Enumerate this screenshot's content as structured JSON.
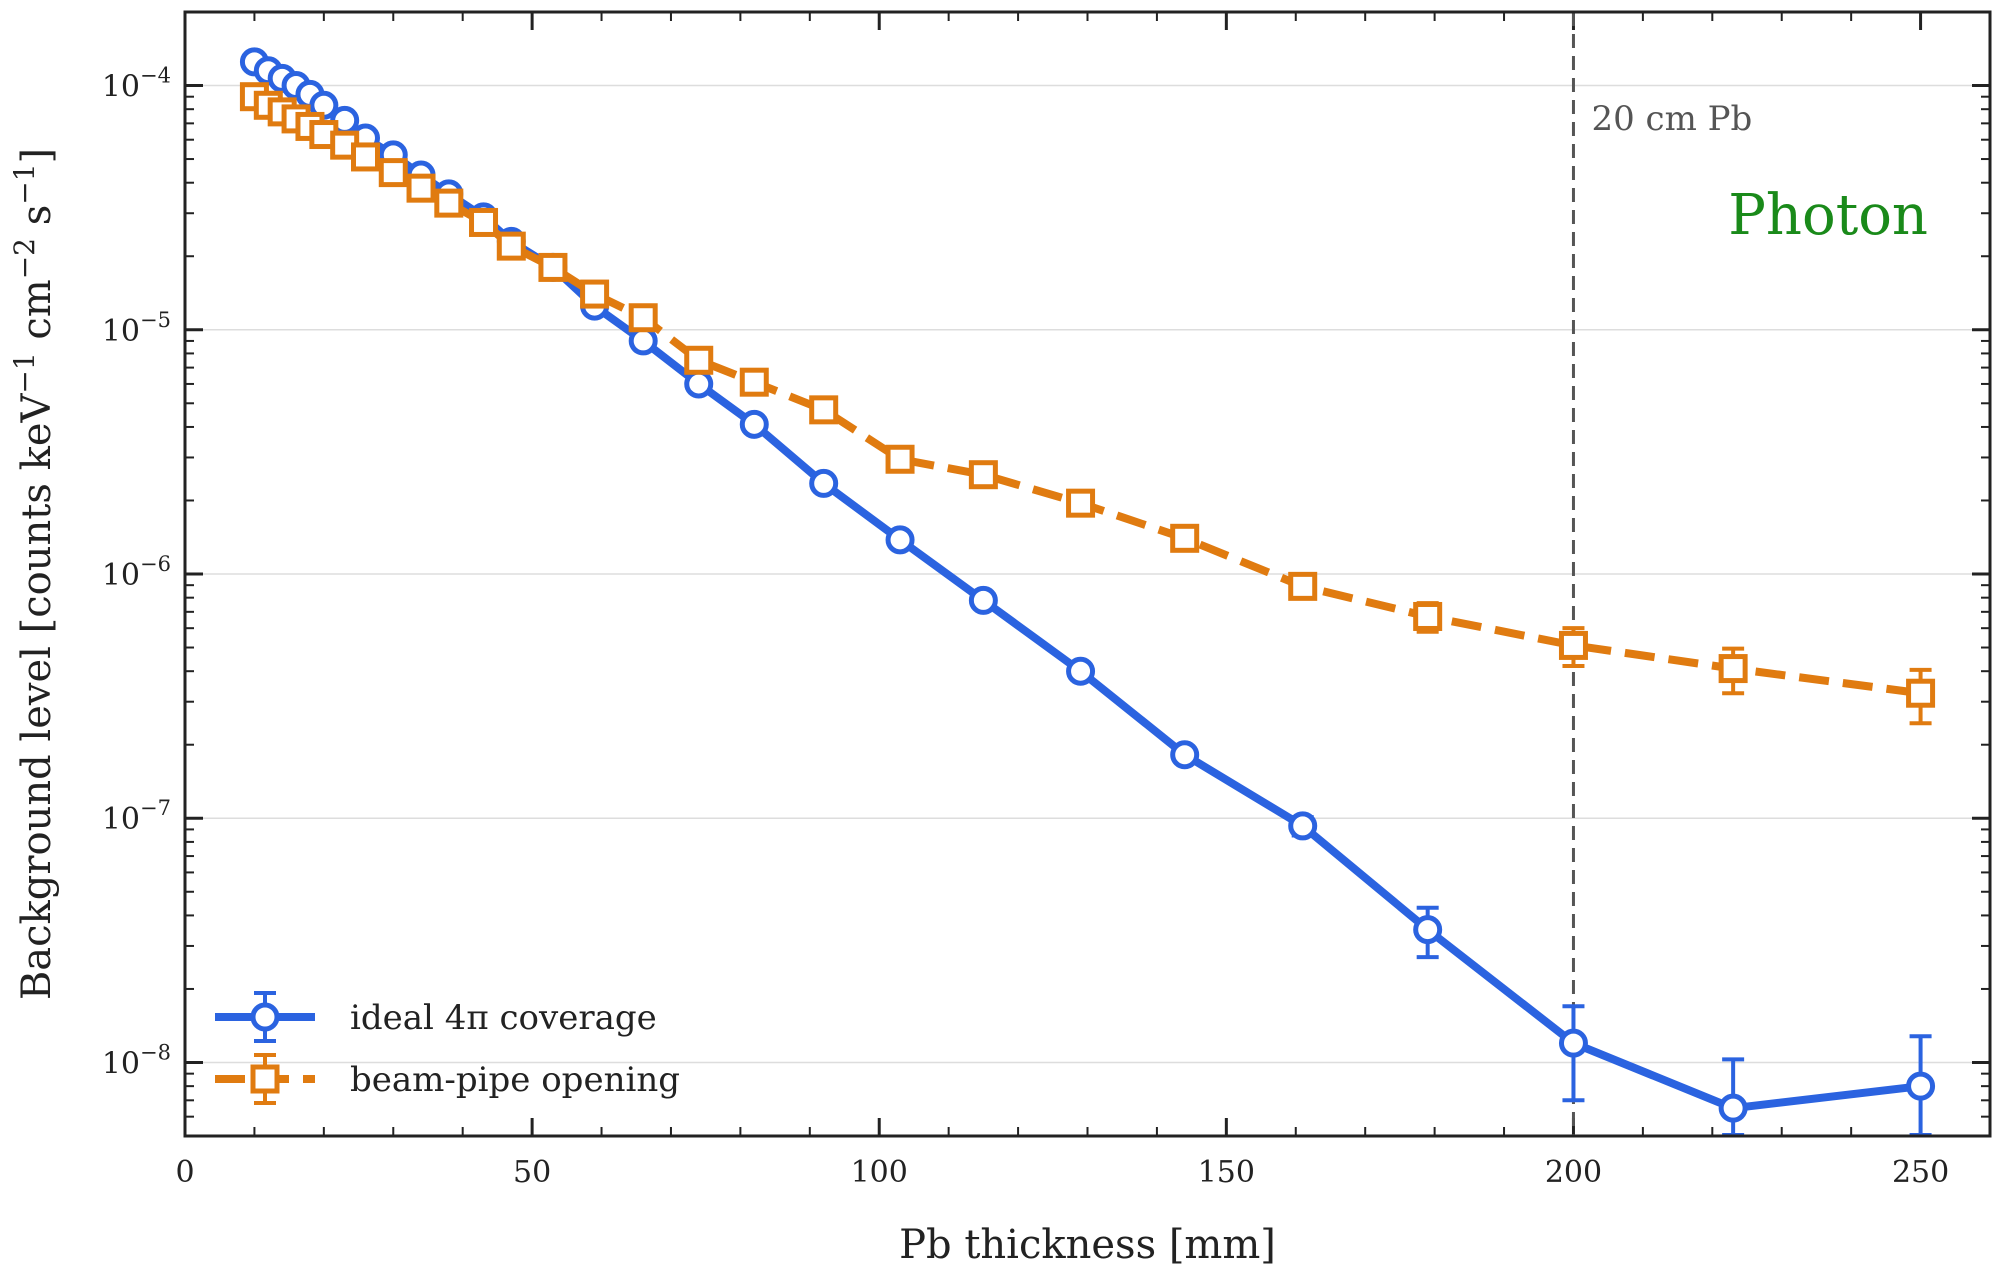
{
  "chart_data": {
    "type": "line",
    "xlabel": "Pb thickness [mm]",
    "ylabel": "Background level [counts keV⁻¹ cm⁻² s⁻¹]",
    "xlim": [
      0,
      260
    ],
    "ylim": [
      5e-09,
      0.0002
    ],
    "yscale": "log",
    "x_ticks": [
      0,
      50,
      100,
      150,
      200,
      250
    ],
    "y_ticks": [
      {
        "value": 1e-08,
        "base": "10",
        "exp": "−8"
      },
      {
        "value": 1e-07,
        "base": "10",
        "exp": "−7"
      },
      {
        "value": 1e-06,
        "base": "10",
        "exp": "−6"
      },
      {
        "value": 1e-05,
        "base": "10",
        "exp": "−5"
      },
      {
        "value": 0.0001,
        "base": "10",
        "exp": "−4"
      }
    ],
    "grid": "horizontal",
    "legend_position": "lower-left",
    "series": [
      {
        "name": "ideal 4π coverage",
        "color": "#2b63e0",
        "marker": "circle",
        "linestyle": "solid",
        "x": [
          10,
          12,
          14,
          16,
          18,
          20,
          23,
          26,
          30,
          34,
          38,
          43,
          47,
          53,
          59,
          66,
          74,
          82,
          92,
          103,
          115,
          129,
          144,
          161,
          179,
          200,
          223,
          250
        ],
        "y": [
          0.000125,
          0.000115,
          0.000107,
          0.0001,
          9.2e-05,
          8.3e-05,
          7.2e-05,
          6.1e-05,
          5.2e-05,
          4.3e-05,
          3.6e-05,
          2.9e-05,
          2.3e-05,
          1.8e-05,
          1.25e-05,
          9e-06,
          6e-06,
          4.1e-06,
          2.35e-06,
          1.38e-06,
          7.8e-07,
          4e-07,
          1.82e-07,
          9.3e-08,
          3.5e-08,
          1.2e-08,
          6.5e-09,
          8e-09
        ],
        "err": [
          0,
          0,
          0,
          0,
          0,
          0,
          0,
          0,
          0,
          0,
          0,
          0,
          0,
          0,
          0,
          0,
          0,
          0,
          0,
          0,
          0,
          0,
          0,
          8e-09,
          8e-09,
          5e-09,
          3.8e-09,
          4.8e-09
        ]
      },
      {
        "name": "beam-pipe opening",
        "color": "#e07b10",
        "marker": "square",
        "linestyle": "dashed",
        "x": [
          10,
          12,
          14,
          16,
          18,
          20,
          23,
          26,
          30,
          34,
          38,
          43,
          47,
          53,
          59,
          66,
          74,
          82,
          92,
          103,
          115,
          129,
          144,
          161,
          179,
          200,
          223,
          250
        ],
        "y": [
          9e-05,
          8.3e-05,
          7.8e-05,
          7.3e-05,
          6.8e-05,
          6.3e-05,
          5.7e-05,
          5.1e-05,
          4.4e-05,
          3.8e-05,
          3.3e-05,
          2.75e-05,
          2.2e-05,
          1.8e-05,
          1.4e-05,
          1.12e-05,
          7.5e-06,
          6.1e-06,
          4.7e-06,
          2.95e-06,
          2.55e-06,
          1.95e-06,
          1.4e-06,
          8.9e-07,
          6.7e-07,
          5.1e-07,
          4.1e-07,
          3.25e-07
        ],
        "err": [
          0,
          0,
          0,
          0,
          0,
          0,
          0,
          0,
          0,
          0,
          0,
          0,
          0,
          0,
          0,
          0,
          0,
          0,
          0,
          0,
          0,
          0,
          0,
          8e-08,
          9e-08,
          9e-08,
          8.5e-08,
          8e-08
        ]
      }
    ],
    "annotations": [
      {
        "text": "20 cm Pb",
        "x": 200,
        "kind": "vline",
        "color": "#555555"
      },
      {
        "text": "Photon",
        "kind": "label",
        "color": "#1a8a1a"
      }
    ]
  }
}
